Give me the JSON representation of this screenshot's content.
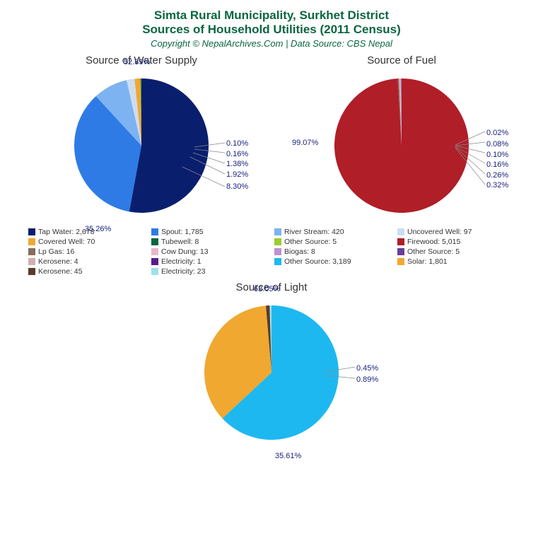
{
  "title_line1": "Simta Rural Municipality, Surkhet District",
  "title_line2": "Sources of Household Utilities (2011 Census)",
  "subtitle": "Copyright © NepalArchives.Com | Data Source: CBS Nepal",
  "title_color": "#0a6640",
  "background_color": "#ffffff",
  "label_color": "#1a237e",
  "chart_water": {
    "title": "Source of Water Supply",
    "type": "pie",
    "slices": [
      {
        "label": "Tap Water",
        "value": 2678,
        "pct": "52.89%",
        "color": "#0a1e6e"
      },
      {
        "label": "Spout",
        "value": 1785,
        "pct": "35.26%",
        "color": "#2e7be6"
      },
      {
        "label": "River Stream",
        "value": 420,
        "pct": "8.30%",
        "color": "#7db3f0"
      },
      {
        "label": "Uncovered Well",
        "value": 97,
        "pct": "1.92%",
        "color": "#cdddf2"
      },
      {
        "label": "Covered Well",
        "value": 70,
        "pct": "1.38%",
        "color": "#f0a830"
      },
      {
        "label": "Tubewell",
        "value": 8,
        "pct": "0.16%",
        "color": "#0a6640"
      },
      {
        "label": "Other Source",
        "value": 5,
        "pct": "0.10%",
        "color": "#9acd32"
      }
    ]
  },
  "chart_fuel": {
    "title": "Source of Fuel",
    "type": "pie",
    "slices": [
      {
        "label": "Firewood",
        "value": 5015,
        "pct": "99.07%",
        "color": "#b01e28"
      },
      {
        "label": "Lp Gas",
        "value": 16,
        "pct": "0.32%",
        "color": "#8a6d5a"
      },
      {
        "label": "Cow Dung",
        "value": 13,
        "pct": "0.26%",
        "color": "#e8b8c8"
      },
      {
        "label": "Biogas",
        "value": 8,
        "pct": "0.16%",
        "color": "#c090d0"
      },
      {
        "label": "Other Source",
        "value": 5,
        "pct": "0.10%",
        "color": "#6a3d9a"
      },
      {
        "label": "Kerosene",
        "value": 4,
        "pct": "0.08%",
        "color": "#d0b0b0"
      },
      {
        "label": "Electricity",
        "value": 1,
        "pct": "0.02%",
        "color": "#5a1e8a"
      }
    ]
  },
  "chart_light": {
    "title": "Source of Light",
    "type": "pie",
    "slices": [
      {
        "label": "Other Source",
        "value": 3189,
        "pct": "63.05%",
        "color": "#1eb8f0"
      },
      {
        "label": "Solar",
        "value": 1801,
        "pct": "35.61%",
        "color": "#f0a830"
      },
      {
        "label": "Kerosene",
        "value": 45,
        "pct": "0.89%",
        "color": "#5a3a28"
      },
      {
        "label": "Electricity",
        "value": 23,
        "pct": "0.45%",
        "color": "#a0e0e8"
      }
    ]
  },
  "legend": [
    {
      "label": "Tap Water: 2,678",
      "color": "#0a1e6e"
    },
    {
      "label": "Spout: 1,785",
      "color": "#2e7be6"
    },
    {
      "label": "River Stream: 420",
      "color": "#7db3f0"
    },
    {
      "label": "Uncovered Well: 97",
      "color": "#cdddf2"
    },
    {
      "label": "Covered Well: 70",
      "color": "#f0a830"
    },
    {
      "label": "Tubewell: 8",
      "color": "#0a6640"
    },
    {
      "label": "Other Source: 5",
      "color": "#9acd32"
    },
    {
      "label": "Firewood: 5,015",
      "color": "#b01e28"
    },
    {
      "label": "Lp Gas: 16",
      "color": "#8a6d5a"
    },
    {
      "label": "Cow Dung: 13",
      "color": "#e8b8c8"
    },
    {
      "label": "Biogas: 8",
      "color": "#c090d0"
    },
    {
      "label": "Other Source: 5",
      "color": "#6a3d9a"
    },
    {
      "label": "Kerosene: 4",
      "color": "#d0b0b0"
    },
    {
      "label": "Electricity: 1",
      "color": "#5a1e8a"
    },
    {
      "label": "Other Source: 3,189",
      "color": "#1eb8f0"
    },
    {
      "label": "Solar: 1,801",
      "color": "#f0a830"
    },
    {
      "label": "Kerosene: 45",
      "color": "#5a3a28"
    },
    {
      "label": "Electricity: 23",
      "color": "#a0e0e8"
    }
  ]
}
